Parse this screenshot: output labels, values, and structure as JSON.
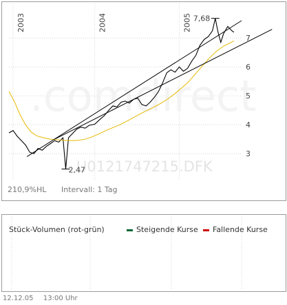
{
  "chart_data": {
    "type": "line",
    "x_tick_labels": [
      "2003",
      "2004",
      "2005"
    ],
    "y_tick_labels": [
      "3",
      "4",
      "5",
      "6",
      "7"
    ],
    "ylim": [
      2.1,
      8.1
    ],
    "grid": true,
    "series": [
      {
        "name": "price",
        "color": "#000000",
        "points": [
          [
            0.0,
            3.72
          ],
          [
            0.6,
            3.8
          ],
          [
            1.2,
            3.6
          ],
          [
            1.8,
            3.45
          ],
          [
            2.4,
            3.3
          ],
          [
            3.0,
            3.05
          ],
          [
            3.6,
            3.0
          ],
          [
            4.2,
            3.18
          ],
          [
            4.8,
            3.12
          ],
          [
            5.4,
            3.25
          ],
          [
            6.0,
            3.35
          ],
          [
            6.6,
            3.45
          ],
          [
            7.2,
            3.4
          ],
          [
            7.8,
            3.55
          ],
          [
            8.2,
            2.47
          ],
          [
            8.6,
            3.55
          ],
          [
            9.2,
            3.7
          ],
          [
            9.8,
            3.85
          ],
          [
            10.4,
            3.92
          ],
          [
            11.0,
            3.88
          ],
          [
            11.6,
            3.98
          ],
          [
            12.4,
            4.02
          ],
          [
            13.2,
            4.2
          ],
          [
            13.8,
            4.32
          ],
          [
            14.4,
            4.5
          ],
          [
            15.0,
            4.65
          ],
          [
            15.6,
            4.62
          ],
          [
            16.2,
            4.78
          ],
          [
            16.8,
            4.82
          ],
          [
            17.4,
            4.75
          ],
          [
            18.0,
            4.88
          ],
          [
            18.6,
            4.92
          ],
          [
            19.2,
            4.7
          ],
          [
            19.8,
            4.65
          ],
          [
            20.4,
            4.78
          ],
          [
            21.0,
            4.95
          ],
          [
            21.6,
            5.15
          ],
          [
            22.2,
            5.45
          ],
          [
            22.8,
            5.8
          ],
          [
            23.4,
            5.9
          ],
          [
            24.0,
            5.82
          ],
          [
            24.6,
            6.0
          ],
          [
            25.2,
            5.85
          ],
          [
            25.8,
            5.95
          ],
          [
            26.4,
            6.2
          ],
          [
            27.0,
            6.4
          ],
          [
            27.6,
            6.75
          ],
          [
            28.2,
            6.95
          ],
          [
            28.8,
            7.05
          ],
          [
            29.4,
            7.25
          ],
          [
            29.8,
            7.68
          ],
          [
            30.2,
            7.2
          ],
          [
            30.6,
            6.85
          ],
          [
            31.0,
            7.15
          ],
          [
            31.6,
            7.4
          ],
          [
            32.2,
            7.25
          ],
          [
            32.5,
            7.2
          ]
        ]
      },
      {
        "name": "moving-average",
        "color": "#e6b800",
        "points": [
          [
            0.0,
            5.15
          ],
          [
            0.8,
            4.8
          ],
          [
            1.6,
            4.35
          ],
          [
            2.4,
            4.0
          ],
          [
            3.2,
            3.75
          ],
          [
            4.0,
            3.62
          ],
          [
            5.0,
            3.55
          ],
          [
            6.0,
            3.5
          ],
          [
            7.0,
            3.48
          ],
          [
            8.0,
            3.46
          ],
          [
            9.0,
            3.45
          ],
          [
            10.0,
            3.46
          ],
          [
            11.0,
            3.5
          ],
          [
            12.0,
            3.58
          ],
          [
            13.0,
            3.68
          ],
          [
            14.0,
            3.8
          ],
          [
            15.0,
            3.9
          ],
          [
            16.0,
            4.0
          ],
          [
            17.0,
            4.12
          ],
          [
            18.0,
            4.25
          ],
          [
            19.0,
            4.38
          ],
          [
            20.0,
            4.5
          ],
          [
            21.0,
            4.62
          ],
          [
            22.0,
            4.75
          ],
          [
            23.0,
            4.9
          ],
          [
            24.0,
            5.08
          ],
          [
            25.0,
            5.28
          ],
          [
            26.0,
            5.5
          ],
          [
            27.0,
            5.78
          ],
          [
            28.0,
            6.05
          ],
          [
            29.0,
            6.32
          ],
          [
            30.0,
            6.55
          ],
          [
            31.0,
            6.72
          ],
          [
            32.5,
            6.9
          ]
        ]
      },
      {
        "name": "trend-line-1",
        "color": "#000000",
        "points": [
          [
            2.6,
            2.9
          ],
          [
            33.6,
            7.6
          ]
        ]
      },
      {
        "name": "trend-line-2",
        "color": "#000000",
        "points": [
          [
            6.6,
            3.5
          ],
          [
            38.0,
            7.3
          ]
        ]
      }
    ],
    "annotations": [
      {
        "text": "7,68",
        "x": 29.8,
        "y": 7.68
      },
      {
        "text": "2,47",
        "x": 8.2,
        "y": 2.47
      }
    ]
  },
  "watermark": {
    "brand": ".comdirect",
    "ticker": "U0121747215.DFK"
  },
  "info": {
    "hl": "210,9%HL",
    "interval": "Intervall: 1 Tag"
  },
  "volume": {
    "title": "Stück-Volumen (rot-grün)",
    "legend_up": "Steigende Kurse",
    "legend_down": "Fallende Kurse",
    "color_up": "#006633",
    "color_down": "#cc0000"
  },
  "footer": {
    "date": "12.12.05",
    "time": "13:00 Uhr"
  }
}
